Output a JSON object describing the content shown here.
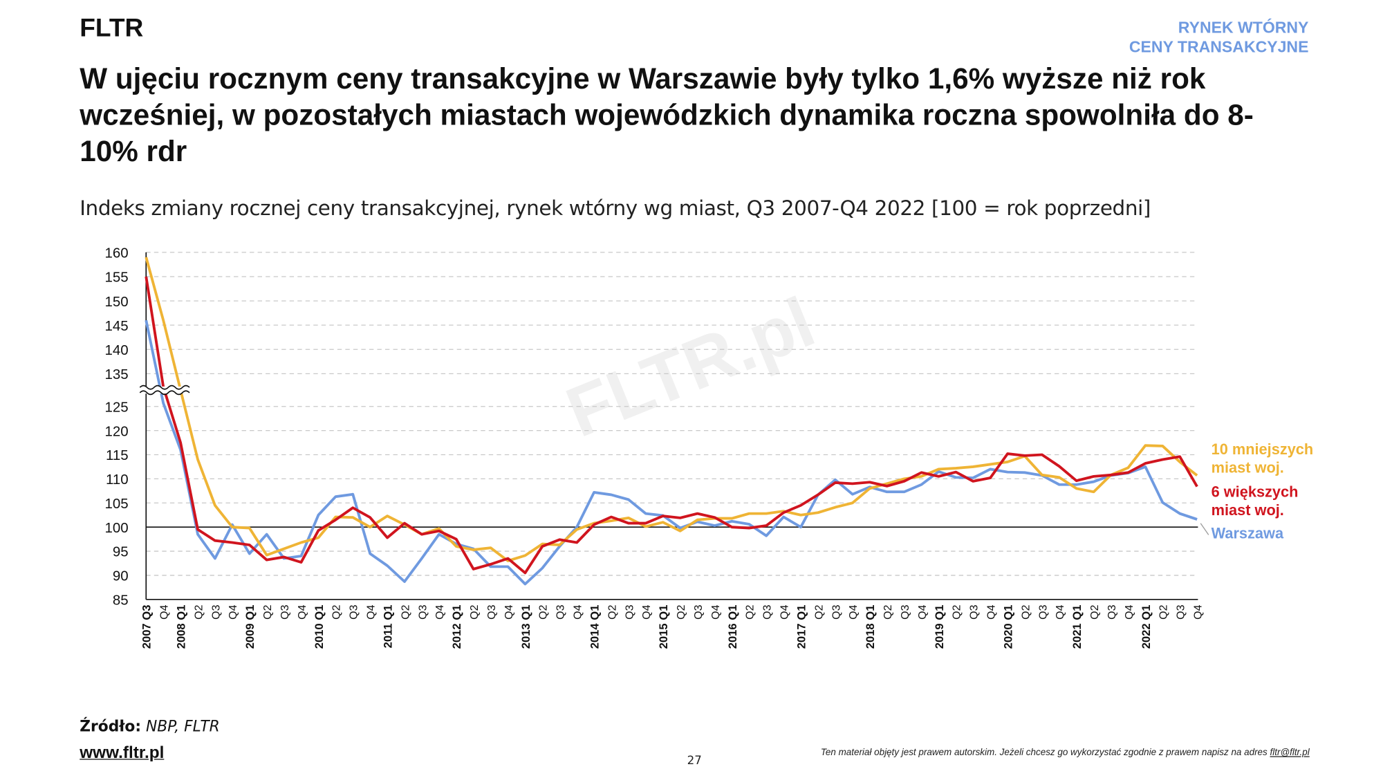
{
  "header": {
    "brand": "FLTR",
    "section": [
      "RYNEK WTÓRNY",
      "CENY TRANSAKCYJNE"
    ],
    "title": "W ujęciu rocznym ceny transakcyjne w Warszawie były tylko 1,6% wyższe niż rok wcześniej, w pozostałych miastach wojewódzkich dynamika roczna spowolniła do 8-10% rdr"
  },
  "chart_data": {
    "type": "line",
    "subtitle": "Indeks zmiany rocznej ceny transakcyjnej, rynek wtórny wg miast, Q3 2007-Q4 2022 [100 = rok poprzedni]",
    "watermark": "FLTR.pl",
    "categories": [
      "2007 Q3",
      "Q4",
      "2008 Q1",
      "Q2",
      "Q3",
      "Q4",
      "2009 Q1",
      "Q2",
      "Q3",
      "Q4",
      "2010 Q1",
      "Q2",
      "Q3",
      "Q4",
      "2011 Q1",
      "Q2",
      "Q3",
      "Q4",
      "2012 Q1",
      "Q2",
      "Q3",
      "Q4",
      "2013 Q1",
      "Q2",
      "Q3",
      "Q4",
      "2014 Q1",
      "Q2",
      "Q3",
      "Q4",
      "2015 Q1",
      "Q2",
      "Q3",
      "Q4",
      "2016 Q1",
      "Q2",
      "Q3",
      "Q4",
      "2017 Q1",
      "Q2",
      "Q3",
      "Q4",
      "2018 Q1",
      "Q2",
      "Q3",
      "Q4",
      "2019 Q1",
      "Q2",
      "Q3",
      "Q4",
      "2020 Q1",
      "Q2",
      "Q3",
      "Q4",
      "2021 Q1",
      "Q2",
      "Q3",
      "Q4",
      "2022 Q1",
      "Q2",
      "Q3",
      "Q4"
    ],
    "series": [
      {
        "name": "10 mniejszych miast woj.",
        "color": "#efb435",
        "values": [
          159,
          146,
          130,
          114,
          104.5,
          100,
          99.8,
          94.2,
          95.5,
          96.8,
          97.8,
          102.1,
          102,
          100,
          102.3,
          100.5,
          98.5,
          99.7,
          96,
          95.3,
          95.7,
          93,
          94.1,
          96.5,
          96.3,
          99.5,
          100.8,
          101.3,
          101.9,
          100.1,
          101,
          99.2,
          101.5,
          101.8,
          101.8,
          102.8,
          102.8,
          103.3,
          102.5,
          103,
          104.1,
          105,
          108,
          109,
          110,
          110.5,
          112,
          112.2,
          112.5,
          113,
          113.5,
          114.7,
          110.8,
          110.3,
          108,
          107.3,
          110.8,
          112.3,
          116.9,
          116.8,
          113.5,
          110.7
        ]
      },
      {
        "name": "6 większych miast woj.",
        "color": "#d0141e",
        "values": [
          155,
          131,
          117.5,
          99.5,
          97.2,
          96.8,
          96.3,
          93.2,
          93.8,
          92.7,
          99.3,
          101.5,
          104,
          102,
          97.8,
          100.8,
          98.5,
          99.2,
          97.5,
          91.3,
          92.3,
          93.5,
          90.5,
          96,
          97.4,
          96.8,
          100.5,
          102.1,
          100.8,
          100.8,
          102.3,
          101.9,
          102.8,
          102,
          100,
          99.8,
          100.3,
          103,
          104.5,
          106.7,
          109.2,
          109,
          109.3,
          108.5,
          109.5,
          111.3,
          110.5,
          111.4,
          109.5,
          110.2,
          115.2,
          114.8,
          115,
          112.6,
          109.6,
          110.5,
          110.8,
          111.3,
          113.2,
          114,
          114.6,
          108.4
        ]
      },
      {
        "name": "Warszawa",
        "color": "#6f9ae0",
        "values": [
          146,
          126,
          116,
          98.5,
          93.5,
          100.5,
          94.5,
          98.5,
          93.5,
          94,
          102.5,
          106.3,
          106.8,
          94.5,
          92,
          88.7,
          93.5,
          98.5,
          96.5,
          95.5,
          91.8,
          91.8,
          88.2,
          91.5,
          96,
          100,
          107.2,
          106.7,
          105.7,
          102.8,
          102.4,
          99.8,
          101.1,
          100.3,
          101.2,
          100.6,
          98.2,
          102.1,
          100,
          106.7,
          109.8,
          106.8,
          108.3,
          107.3,
          107.3,
          108.8,
          111.5,
          110.3,
          110.2,
          112,
          111.4,
          111.3,
          110.7,
          108.8,
          108.8,
          109.4,
          110.7,
          111.2,
          112.5,
          105.1,
          102.8,
          101.6
        ]
      }
    ],
    "ylim": [
      85,
      160
    ],
    "yticks": [
      85,
      90,
      95,
      100,
      105,
      110,
      115,
      120,
      125,
      135,
      140,
      145,
      150,
      155,
      160
    ],
    "axis_break": [
      125,
      135
    ],
    "reference_line": 100,
    "grid": true
  },
  "footer": {
    "source_label": "Źródło:",
    "source": "NBP, FLTR",
    "website": "www.fltr.pl",
    "page": "27",
    "copyright": "Ten materiał objęty jest prawem autorskim. Jeżeli chcesz go wykorzystać zgodnie z prawem napisz na adres ",
    "email": "fltr@fltr.pl"
  }
}
